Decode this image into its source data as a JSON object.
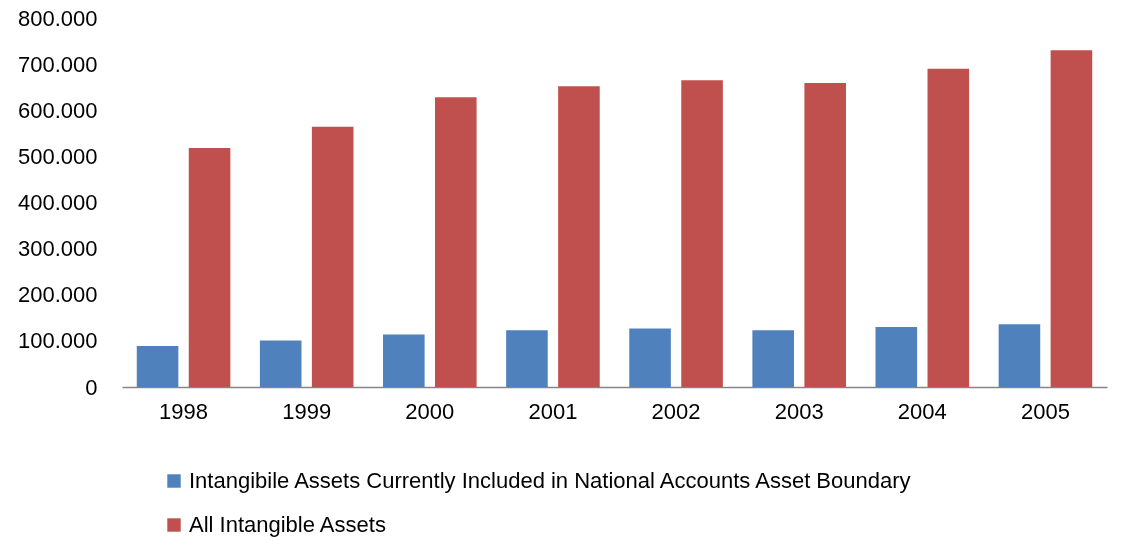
{
  "chart_data": {
    "type": "bar",
    "categories": [
      "1998",
      "1999",
      "2000",
      "2001",
      "2002",
      "2003",
      "2004",
      "2005"
    ],
    "series": [
      {
        "name": "Intangibile Assets Currently Included in National Accounts Asset Boundary",
        "color": "#4f81bd",
        "values": [
          89000,
          101000,
          114000,
          123000,
          127000,
          123000,
          130000,
          136000
        ]
      },
      {
        "name": "All Intangible Assets",
        "color": "#c0504d",
        "values": [
          518000,
          564000,
          628000,
          652000,
          665000,
          659000,
          690000,
          730000
        ]
      }
    ],
    "ylim": [
      0,
      800000
    ],
    "yticks": [
      0,
      {
        "value": 100000,
        "label": "100.000"
      },
      {
        "value": 200000,
        "label": "200.000"
      },
      {
        "value": 300000,
        "label": "300.000"
      },
      {
        "value": 400000,
        "label": "400.000"
      },
      {
        "value": 500000,
        "label": "500.000"
      },
      {
        "value": 600000,
        "label": "600.000"
      },
      {
        "value": 700000,
        "label": "700.000"
      },
      {
        "value": 800000,
        "label": "800.000"
      }
    ],
    "legend": "bottom"
  }
}
